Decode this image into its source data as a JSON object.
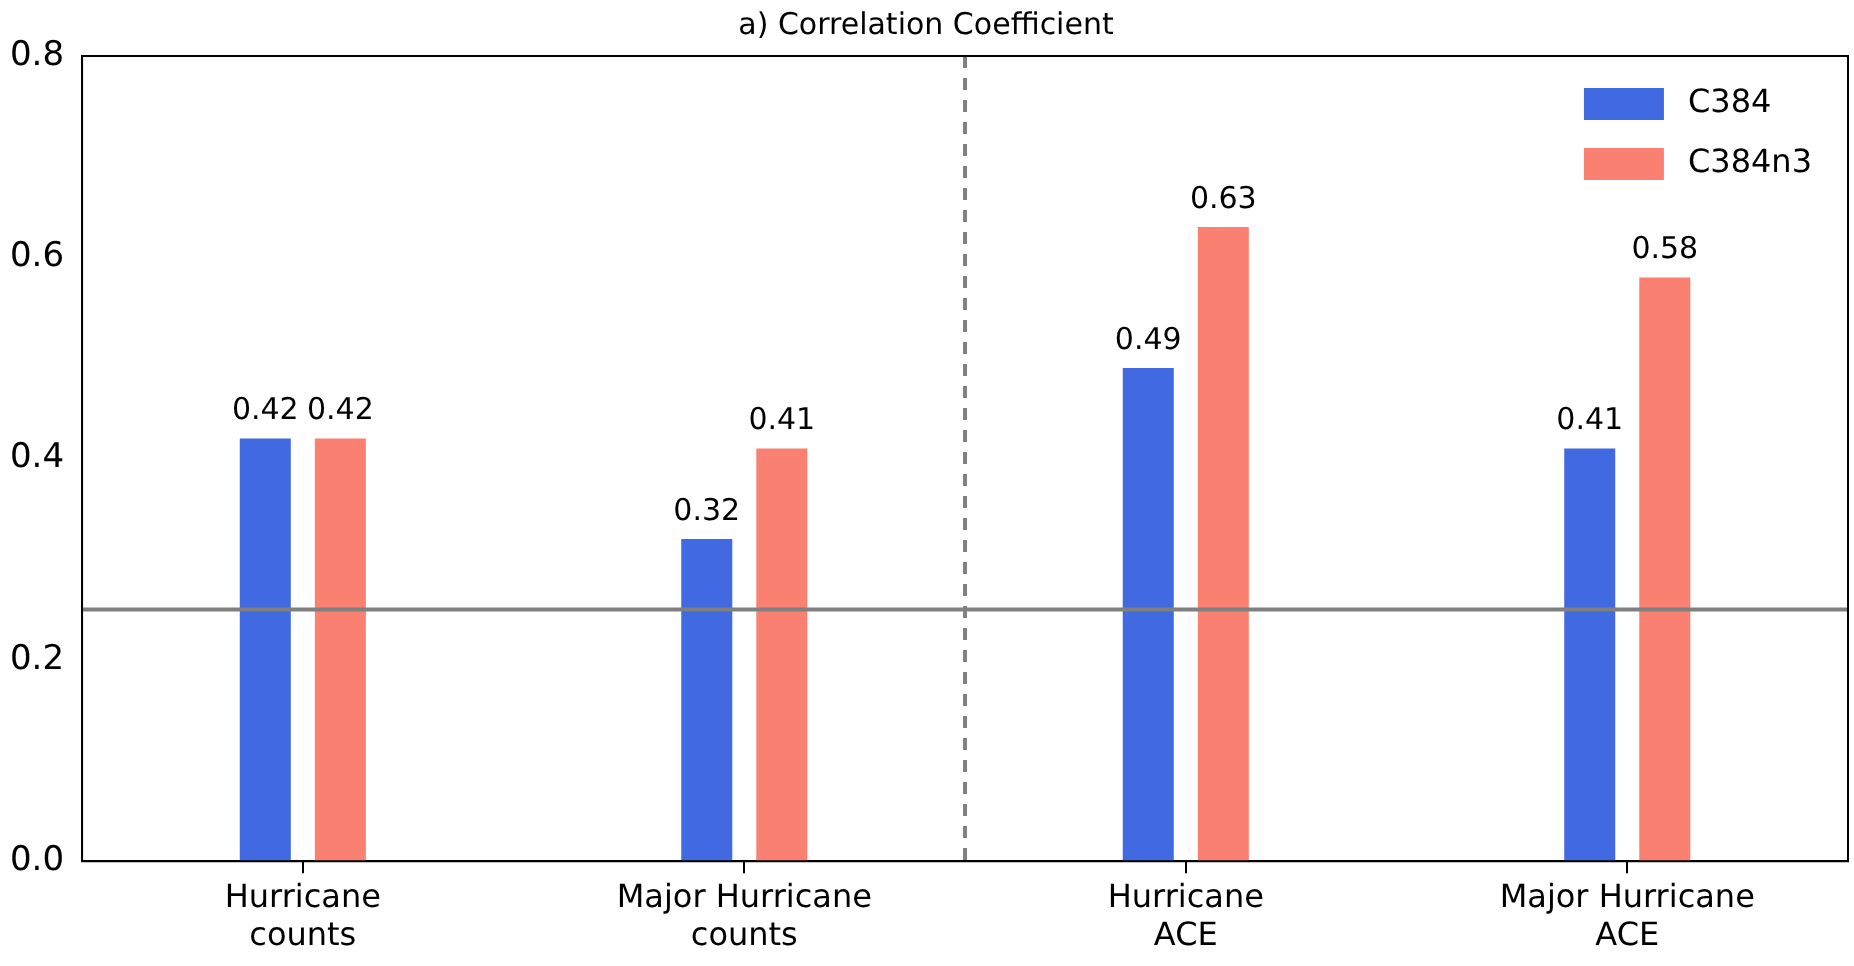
{
  "chart_data": {
    "type": "bar",
    "title": "a) Correlation Coefficient",
    "categories": [
      "Hurricane\ncounts",
      "Major Hurricane\ncounts",
      "Hurricane\nACE",
      "Major Hurricane\nACE"
    ],
    "series": [
      {
        "name": "C384",
        "color": "#4169e1",
        "values": [
          0.42,
          0.32,
          0.49,
          0.41
        ]
      },
      {
        "name": "C384n3",
        "color": "#fa8072",
        "values": [
          0.42,
          0.41,
          0.63,
          0.58
        ]
      }
    ],
    "ylim": [
      0,
      0.8
    ],
    "yticks": [
      {
        "value": 0,
        "label": "0.0"
      },
      0.2,
      0.4,
      0.6,
      0.8
    ],
    "ref_lines": [
      {
        "axis": "y",
        "value": 0.25,
        "color": "#808080",
        "line_style": "solid"
      }
    ],
    "data_labels": true,
    "legend": "top right",
    "grid": false
  }
}
